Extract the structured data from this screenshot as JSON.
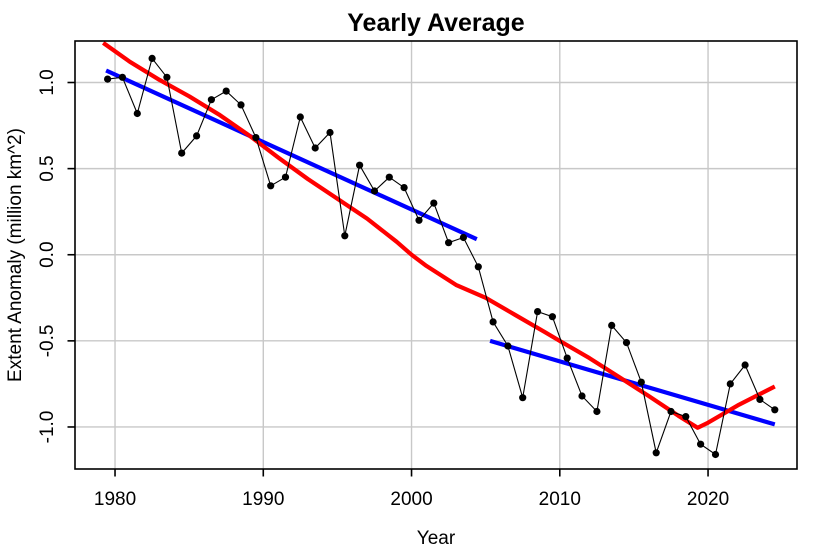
{
  "page": {
    "background_color": "#ffffff"
  },
  "chart_data": {
    "type": "line",
    "title": "Yearly Average",
    "xlabel": "Year",
    "ylabel": "Extent Anomaly (million km^2)",
    "grid": true,
    "grid_color": "#c8c8c8",
    "axis_color": "#000000",
    "plot_bg": "#ffffff",
    "legend": "none",
    "xlim": [
      1977.3,
      2026.0
    ],
    "ylim": [
      -1.244,
      1.241
    ],
    "x_ticks": [
      1980,
      1990,
      2000,
      2010,
      2020
    ],
    "x_tick_labels": [
      "1980",
      "1990",
      "2000",
      "2010",
      "2020"
    ],
    "y_ticks": [
      -1.0,
      -0.5,
      0.0,
      0.5,
      1.0
    ],
    "y_tick_labels": [
      "-1.0",
      "-0.5",
      "0.0",
      "0.5",
      "1.0"
    ],
    "point_x_offset": 0.5,
    "x": [
      1979,
      1980,
      1981,
      1982,
      1983,
      1984,
      1985,
      1986,
      1987,
      1988,
      1989,
      1990,
      1991,
      1992,
      1993,
      1994,
      1995,
      1996,
      1997,
      1998,
      1999,
      2000,
      2001,
      2002,
      2003,
      2004,
      2005,
      2006,
      2007,
      2008,
      2009,
      2010,
      2011,
      2012,
      2013,
      2014,
      2015,
      2016,
      2017,
      2018,
      2019,
      2020,
      2021,
      2022,
      2023,
      2024
    ],
    "series": [
      {
        "name": "yearly-average-extent-anomaly",
        "color": "#000000",
        "line_width": 1.1,
        "marker": "filled-circle",
        "marker_radius": 3.6,
        "values": [
          1.02,
          1.03,
          0.82,
          1.14,
          1.03,
          0.59,
          0.69,
          0.9,
          0.95,
          0.87,
          0.68,
          0.4,
          0.45,
          0.8,
          0.62,
          0.71,
          0.11,
          0.52,
          0.37,
          0.45,
          0.39,
          0.2,
          0.3,
          0.07,
          0.1,
          -0.07,
          -0.39,
          -0.53,
          -0.83,
          -0.33,
          -0.36,
          -0.6,
          -0.82,
          -0.91,
          -0.41,
          -0.51,
          -0.74,
          -1.15,
          -0.91,
          -0.94,
          -1.1,
          -1.16,
          -0.75,
          -0.64,
          -0.84,
          -0.9
        ]
      }
    ],
    "trend_lines": [
      {
        "name": "trend-full-period-with-2019-breakpoint",
        "color": "#ff0000",
        "width": 4.2,
        "points": [
          [
            1979.2,
            1.23
          ],
          [
            1981,
            1.12
          ],
          [
            1983,
            1.015
          ],
          [
            1985,
            0.92
          ],
          [
            1987,
            0.815
          ],
          [
            1989,
            0.695
          ],
          [
            1991,
            0.565
          ],
          [
            1993,
            0.44
          ],
          [
            1995,
            0.325
          ],
          [
            1997,
            0.21
          ],
          [
            1999,
            0.075
          ],
          [
            2000,
            0.0
          ],
          [
            2001,
            -0.065
          ],
          [
            2003,
            -0.175
          ],
          [
            2005,
            -0.25
          ],
          [
            2007,
            -0.35
          ],
          [
            2009,
            -0.45
          ],
          [
            2010,
            -0.5
          ],
          [
            2012,
            -0.6
          ],
          [
            2014,
            -0.71
          ],
          [
            2016,
            -0.82
          ],
          [
            2018,
            -0.935
          ],
          [
            2019.3,
            -1.005
          ],
          [
            2020,
            -0.975
          ],
          [
            2022,
            -0.875
          ],
          [
            2024.5,
            -0.765
          ]
        ]
      },
      {
        "name": "trend-1979-2004",
        "color": "#0000ff",
        "width": 4.2,
        "points": [
          [
            1979.4,
            1.07
          ],
          [
            2004.4,
            0.09
          ]
        ]
      },
      {
        "name": "trend-2005-2024",
        "color": "#0000ff",
        "width": 4.2,
        "points": [
          [
            2005.3,
            -0.5
          ],
          [
            2024.5,
            -0.985
          ]
        ]
      }
    ]
  }
}
